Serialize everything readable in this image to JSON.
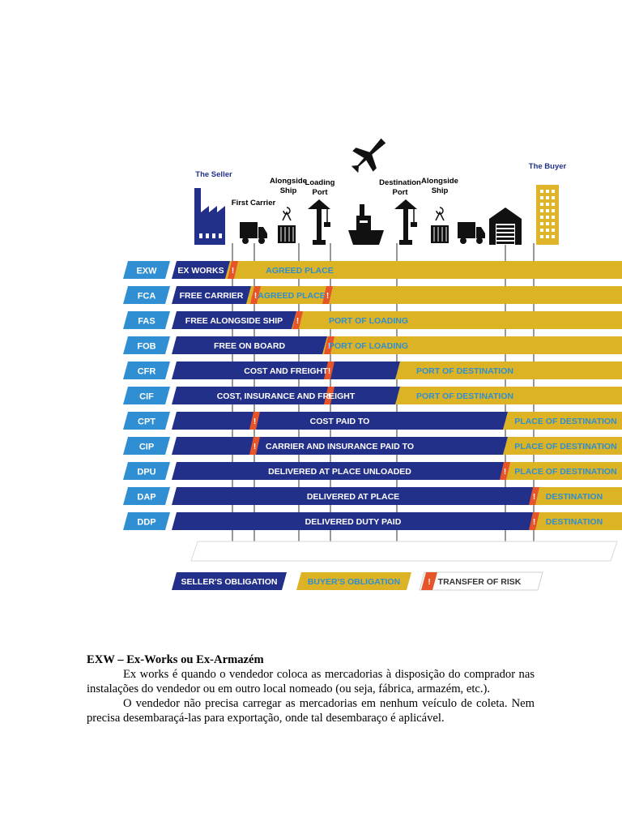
{
  "colors": {
    "seller": "#23308a",
    "buyer": "#dcb324",
    "term_box": "#2f8fd2",
    "risk": "#e8542a",
    "icon": "#111111",
    "seller_icon": "#23308a",
    "buyer_icon": "#e0b52a"
  },
  "figure": {
    "points": [
      {
        "label": "The Seller",
        "icon": "factory-icon"
      },
      {
        "label": "First Carrier",
        "icon": "truck-icon"
      },
      {
        "label": "Alongside Ship",
        "icon": "container-crane-icon"
      },
      {
        "label": "Loading Port",
        "icon": "port-crane-icon"
      },
      {
        "label": "",
        "icon": "airplane-icon"
      },
      {
        "label": "",
        "icon": "ship-icon"
      },
      {
        "label": "Destination Port",
        "icon": "port-crane-icon"
      },
      {
        "label": "Alongside Ship",
        "icon": "container-crane-icon"
      },
      {
        "label": "",
        "icon": "truck-icon"
      },
      {
        "label": "",
        "icon": "warehouse-icon"
      },
      {
        "label": "The Buyer",
        "icon": "building-icon"
      }
    ],
    "rows": [
      {
        "code": "EXW",
        "seller_text": "EX WORKS",
        "buyer_text": "AGREED PLACE"
      },
      {
        "code": "FCA",
        "seller_text": "FREE CARRIER",
        "buyer_text": "AGREED PLACE"
      },
      {
        "code": "FAS",
        "seller_text": "FREE ALONGSIDE SHIP",
        "buyer_text": "PORT OF LOADING"
      },
      {
        "code": "FOB",
        "seller_text": "FREE ON BOARD",
        "buyer_text": "PORT OF LOADING"
      },
      {
        "code": "CFR",
        "seller_text": "COST AND FREIGHT",
        "buyer_text": "PORT OF DESTINATION"
      },
      {
        "code": "CIF",
        "seller_text": "COST, INSURANCE AND FREIGHT",
        "buyer_text": "PORT OF DESTINATION"
      },
      {
        "code": "CPT",
        "seller_text": "COST PAID TO",
        "buyer_text": "PLACE OF DESTINATION"
      },
      {
        "code": "CIP",
        "seller_text": "CARRIER AND INSURANCE PAID TO",
        "buyer_text": "PLACE OF DESTINATION"
      },
      {
        "code": "DPU",
        "seller_text": "DELIVERED AT PLACE UNLOADED",
        "buyer_text": "PLACE OF DESTINATION"
      },
      {
        "code": "DAP",
        "seller_text": "DELIVERED AT PLACE",
        "buyer_text": "DESTINATION"
      },
      {
        "code": "DDP",
        "seller_text": "DELIVERED DUTY PAID",
        "buyer_text": "DESTINATION"
      }
    ],
    "risk_symbol": "!",
    "legend": {
      "seller": "SELLER'S OBLIGATION",
      "buyer": "BUYER'S OBLIGATION",
      "risk": "TRANSFER OF RISK"
    }
  },
  "article": {
    "heading": "EXW  – Ex-Works ou Ex-Armazém",
    "paragraphs": [
      "Ex works é quando o vendedor coloca as mercadorias à disposição do comprador nas instalações do vendedor ou em outro local nomeado (ou seja, fábrica, armazém, etc.).",
      "O vendedor não precisa carregar as mercadorias em nenhum veículo de coleta. Nem precisa desembaraçá-las para exportação, onde tal desembaraço é aplicável."
    ]
  }
}
